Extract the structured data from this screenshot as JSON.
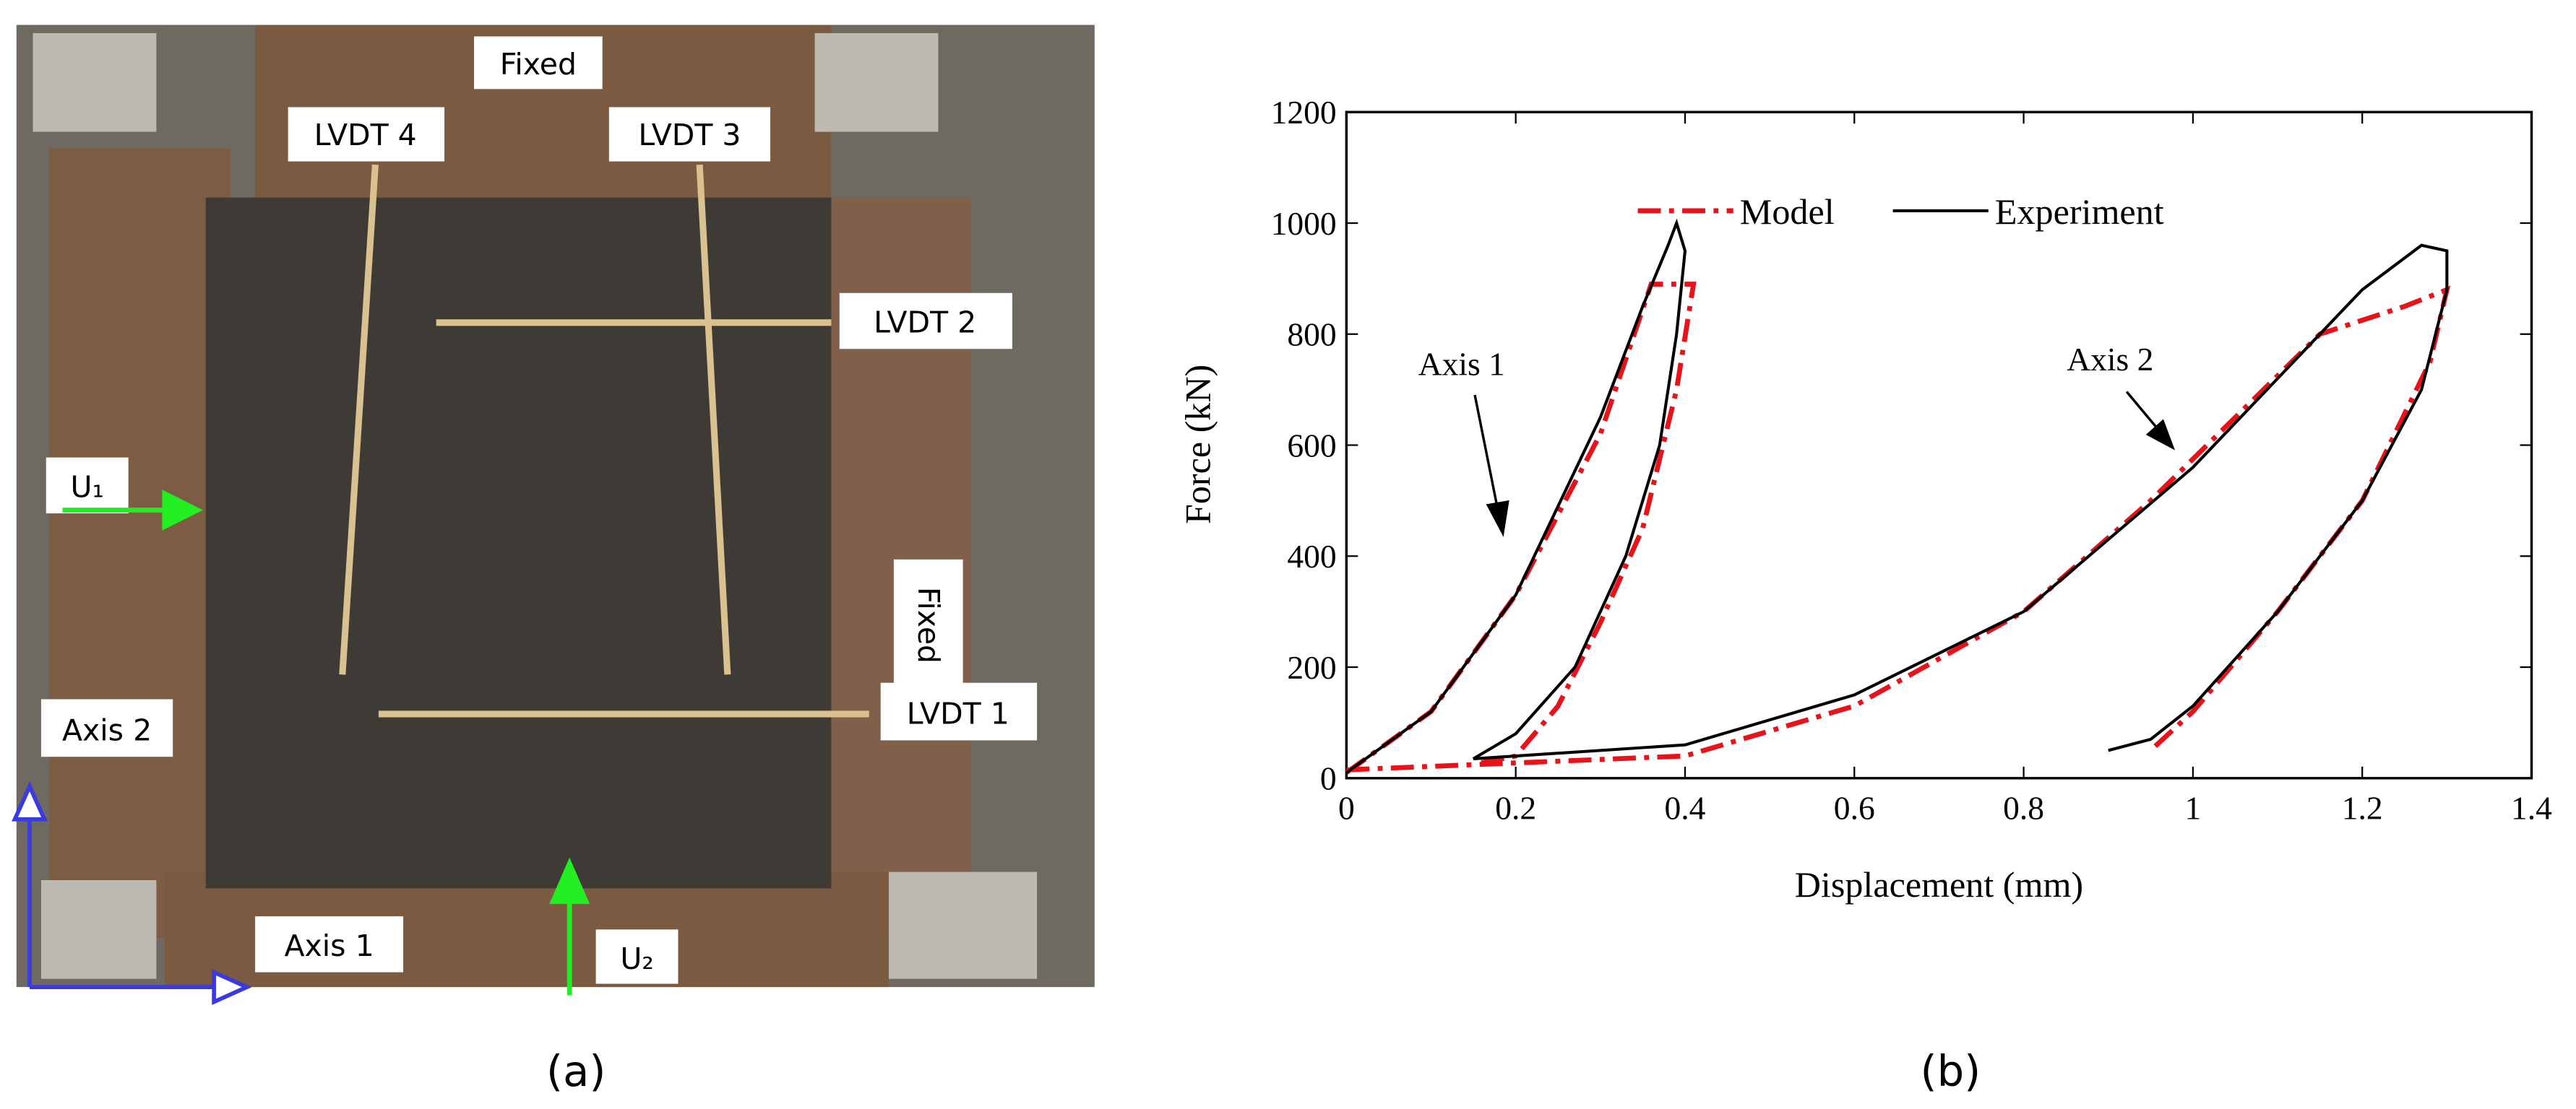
{
  "panel_a": {
    "labels": [
      "Fixed",
      "LVDT 4",
      "LVDT 3",
      "LVDT 2",
      "U₁",
      "Fixed",
      "LVDT 1",
      "Axis 2",
      "Axis 1",
      "U₂"
    ],
    "caption": "(a)"
  },
  "chart_data": {
    "type": "line",
    "x_label": "Displacement (mm)",
    "y_label": "Force (kN)",
    "xlim": [
      0,
      1.4
    ],
    "ylim": [
      0,
      1200
    ],
    "xticks": [
      0,
      0.2,
      0.4,
      0.6,
      0.8,
      1,
      1.2,
      1.4
    ],
    "yticks": [
      0,
      200,
      400,
      600,
      800,
      1000,
      1200
    ],
    "legend": "upper center",
    "series": [
      {
        "name": "Model",
        "color": "#e8121a",
        "dash": "dashdot",
        "x": [
          0,
          0.1,
          0.2,
          0.3,
          0.36,
          0.41,
          0.39,
          0.35,
          0.3,
          0.25,
          0.2,
          0.15,
          null,
          0,
          0.4,
          0.6,
          0.8,
          0.95,
          1.05,
          1.15,
          1.25,
          1.3,
          1.28,
          1.2,
          1.1,
          1,
          0.95
        ],
        "values": [
          10,
          120,
          330,
          620,
          890,
          890,
          700,
          450,
          280,
          130,
          40,
          25,
          null,
          15,
          40,
          130,
          300,
          500,
          650,
          800,
          850,
          880,
          750,
          500,
          300,
          120,
          50
        ]
      },
      {
        "name": "Experiment",
        "color": "#000000",
        "dash": "solid",
        "x": [
          0,
          0.1,
          0.2,
          0.3,
          0.35,
          0.38,
          0.39,
          0.4,
          0.39,
          0.37,
          0.33,
          0.27,
          0.2,
          0.15,
          0.4,
          0.6,
          0.8,
          1,
          1.1,
          1.2,
          1.27,
          1.3,
          1.3,
          1.27,
          1.2,
          1.1,
          1,
          0.95,
          0.9
        ],
        "values": [
          10,
          120,
          330,
          650,
          850,
          960,
          1000,
          950,
          800,
          600,
          400,
          200,
          80,
          35,
          60,
          150,
          300,
          560,
          720,
          880,
          960,
          950,
          880,
          700,
          500,
          300,
          130,
          70,
          50
        ]
      }
    ],
    "annotations": [
      "Axis 1",
      "Axis 2"
    ]
  },
  "caption_b": "(b)"
}
